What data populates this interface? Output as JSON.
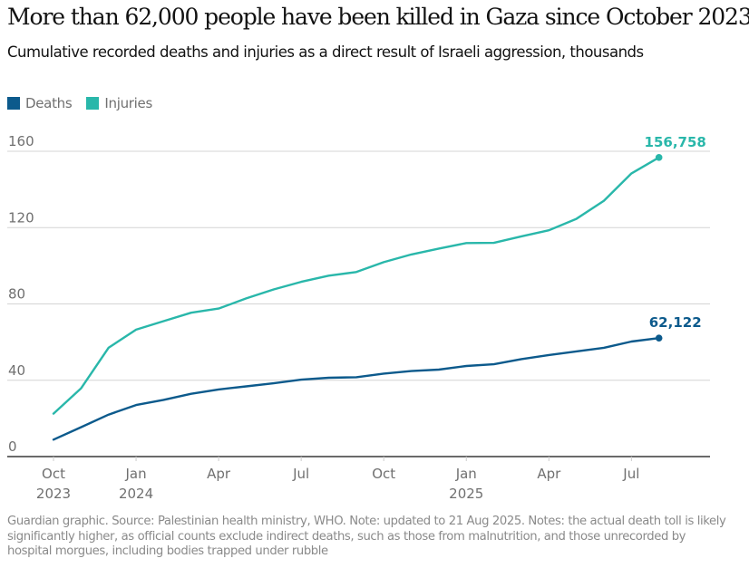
{
  "title": "More than 62,000 people have been killed in Gaza since October 2023",
  "subtitle": "Cumulative recorded deaths and injuries as a direct result of Israeli aggression, thousands",
  "legend": [
    {
      "label": "Deaths",
      "color": "#0c5a8c"
    },
    {
      "label": "Injuries",
      "color": "#29b7aa"
    }
  ],
  "footer": "Guardian graphic. Source: Palestinian health ministry, WHO. Note: updated to 21 Aug 2025. Notes: the actual death toll is likely significantly higher, as official counts exclude indirect deaths, such as those from malnutrition, and those unrecorded by hospital morgues, including bodies trapped under rubble",
  "chart_data": {
    "type": "line",
    "title": "More than 62,000 people have been killed in Gaza since October 2023",
    "subtitle": "Cumulative recorded deaths and injuries as a direct result of Israeli aggression, thousands",
    "xlabel": "",
    "ylabel": "",
    "x": [
      "Oct 2023",
      "Nov 2023",
      "Dec 2023",
      "Jan 2024",
      "Feb 2024",
      "Mar 2024",
      "Apr 2024",
      "May 2024",
      "Jun 2024",
      "Jul 2024",
      "Aug 2024",
      "Sep 2024",
      "Oct 2024",
      "Nov 2024",
      "Dec 2024",
      "Jan 2025",
      "Feb 2025",
      "Mar 2025",
      "Apr 2025",
      "May 2025",
      "Jun 2025",
      "Jul 2025",
      "Aug 2025"
    ],
    "series": [
      {
        "name": "Deaths",
        "color": "#0c5a8c",
        "values": [
          8.9,
          15.4,
          22.0,
          27.0,
          29.7,
          32.9,
          35.2,
          36.8,
          38.4,
          40.3,
          41.3,
          41.6,
          43.5,
          44.8,
          45.6,
          47.5,
          48.4,
          51.1,
          53.2,
          55.1,
          57.0,
          60.3,
          62.122
        ],
        "end_label": "62,122"
      },
      {
        "name": "Injuries",
        "color": "#29b7aa",
        "values": [
          22.5,
          35.7,
          57.0,
          66.5,
          71.0,
          75.4,
          77.6,
          82.9,
          87.6,
          91.6,
          94.8,
          96.7,
          101.9,
          105.9,
          109.0,
          111.9,
          112.0,
          115.4,
          118.6,
          124.6,
          134.1,
          148.4,
          156.758
        ],
        "end_label": "156,758"
      }
    ],
    "ylim": [
      0,
      160
    ],
    "yticks": [
      0,
      40,
      80,
      120,
      160
    ],
    "xticks": [
      {
        "index": 0,
        "label": "Oct",
        "year": "2023"
      },
      {
        "index": 3,
        "label": "Jan",
        "year": "2024"
      },
      {
        "index": 6,
        "label": "Apr",
        "year": ""
      },
      {
        "index": 9,
        "label": "Jul",
        "year": ""
      },
      {
        "index": 12,
        "label": "Oct",
        "year": ""
      },
      {
        "index": 15,
        "label": "Jan",
        "year": "2025"
      },
      {
        "index": 18,
        "label": "Apr",
        "year": ""
      },
      {
        "index": 21,
        "label": "Jul",
        "year": ""
      }
    ],
    "x_range_months": [
      -1.2,
      23.8
    ],
    "grid": true,
    "legend_position": "top-left"
  }
}
